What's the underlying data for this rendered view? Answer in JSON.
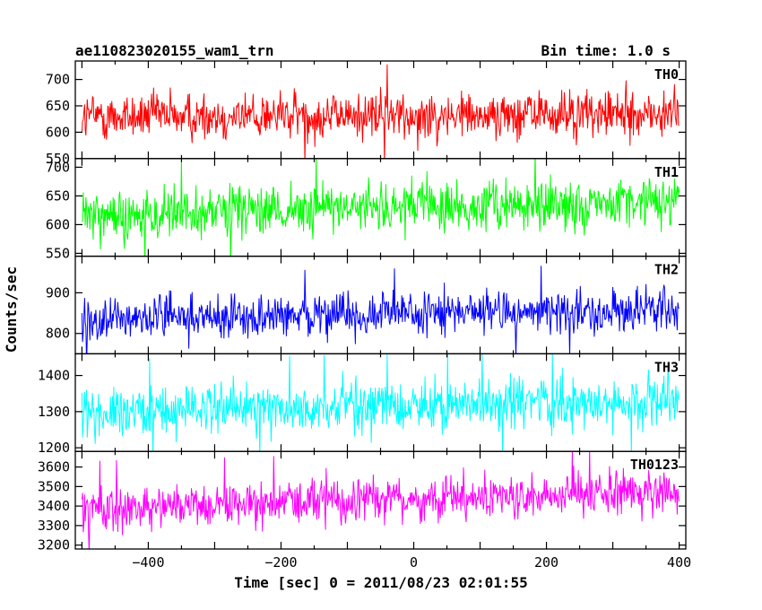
{
  "header": {
    "title": "ae110823020155_wam1_trn",
    "bin_time": "Bin time: 1.0 s"
  },
  "chart_data": {
    "type": "line",
    "xlabel": "Time [sec] 0 = 2011/08/23 02:01:55",
    "ylabel": "Counts/sec",
    "xlim": [
      -510,
      410
    ],
    "xticks": [
      -400,
      -200,
      0,
      200,
      400
    ],
    "x_range": [
      -500,
      400
    ],
    "bin_time_s": 1.0,
    "panels": [
      {
        "name": "TH0",
        "color": "#ff0000",
        "ylim": [
          550,
          735
        ],
        "yticks": [
          550,
          600,
          650,
          700
        ],
        "mean_start": 630,
        "mean_end": 635,
        "spread": 30,
        "spike_max": 735
      },
      {
        "name": "TH1",
        "color": "#00ff00",
        "ylim": [
          545,
          715
        ],
        "yticks": [
          550,
          600,
          650,
          700
        ],
        "mean_start": 615,
        "mean_end": 640,
        "spread": 30,
        "spike_max": 712
      },
      {
        "name": "TH2",
        "color": "#0000ff",
        "ylim": [
          750,
          990
        ],
        "yticks": [
          800,
          900
        ],
        "mean_start": 835,
        "mean_end": 860,
        "spread": 35,
        "spike_max": 965
      },
      {
        "name": "TH3",
        "color": "#00ffff",
        "ylim": [
          1190,
          1460
        ],
        "yticks": [
          1200,
          1300,
          1400
        ],
        "mean_start": 1300,
        "mean_end": 1330,
        "spread": 45,
        "spike_max": 1450
      },
      {
        "name": "TH0123",
        "color": "#ff00ff",
        "ylim": [
          3180,
          3680
        ],
        "yticks": [
          3200,
          3300,
          3400,
          3500,
          3600
        ],
        "mean_start": 3390,
        "mean_end": 3470,
        "spread": 75,
        "spike_max": 3670
      }
    ]
  }
}
